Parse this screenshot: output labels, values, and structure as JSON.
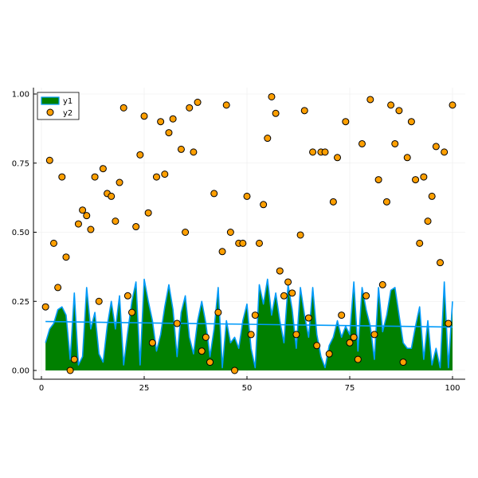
{
  "chart_data": {
    "type": "area",
    "title": "",
    "xlabel": "",
    "ylabel": "",
    "xlim": [
      0,
      100
    ],
    "ylim": [
      0,
      1
    ],
    "xticks": [
      0,
      25,
      50,
      75,
      100
    ],
    "yticks": [
      0.0,
      0.25,
      0.5,
      0.75,
      1.0
    ],
    "xtick_labels": [
      "0",
      "25",
      "50",
      "75",
      "100"
    ],
    "ytick_labels": [
      "0.00",
      "0.25",
      "0.50",
      "0.75",
      "1.00"
    ],
    "grid": true,
    "legend_position": "top-left",
    "colors": {
      "area_fill": "#008000",
      "area_line": "#009AFA",
      "scatter_fill": "#FF9F00",
      "scatter_edge": "#000000",
      "trend_line": "#009AFA",
      "axis": "#000000",
      "grid": "#EBEBEB"
    },
    "series": [
      {
        "name": "y1",
        "kind": "area",
        "x": [
          1,
          2,
          3,
          4,
          5,
          6,
          7,
          8,
          9,
          10,
          11,
          12,
          13,
          14,
          15,
          16,
          17,
          18,
          19,
          20,
          21,
          22,
          23,
          24,
          25,
          26,
          27,
          28,
          29,
          30,
          31,
          32,
          33,
          34,
          35,
          36,
          37,
          38,
          39,
          40,
          41,
          42,
          43,
          44,
          45,
          46,
          47,
          48,
          49,
          50,
          51,
          52,
          53,
          54,
          55,
          56,
          57,
          58,
          59,
          60,
          61,
          62,
          63,
          64,
          65,
          66,
          67,
          68,
          69,
          70,
          71,
          72,
          73,
          74,
          75,
          76,
          77,
          78,
          79,
          80,
          81,
          82,
          83,
          84,
          85,
          86,
          87,
          88,
          89,
          90,
          91,
          92,
          93,
          94,
          95,
          96,
          97,
          98,
          99,
          100
        ],
        "values": [
          0.1,
          0.15,
          0.17,
          0.22,
          0.23,
          0.2,
          0.04,
          0.28,
          0.02,
          0.05,
          0.3,
          0.15,
          0.21,
          0.06,
          0.03,
          0.16,
          0.25,
          0.15,
          0.27,
          0.02,
          0.14,
          0.25,
          0.32,
          0.02,
          0.33,
          0.25,
          0.18,
          0.07,
          0.13,
          0.23,
          0.31,
          0.22,
          0.05,
          0.21,
          0.27,
          0.12,
          0.06,
          0.18,
          0.25,
          0.17,
          0.05,
          0.15,
          0.3,
          0.01,
          0.18,
          0.1,
          0.12,
          0.08,
          0.18,
          0.24,
          0.08,
          0.01,
          0.31,
          0.24,
          0.33,
          0.2,
          0.28,
          0.18,
          0.1,
          0.31,
          0.22,
          0.08,
          0.3,
          0.2,
          0.12,
          0.3,
          0.13,
          0.05,
          0.01,
          0.09,
          0.12,
          0.18,
          0.12,
          0.16,
          0.13,
          0.32,
          0.07,
          0.3,
          0.22,
          0.16,
          0.04,
          0.3,
          0.14,
          0.2,
          0.29,
          0.3,
          0.2,
          0.1,
          0.08,
          0.08,
          0.16,
          0.23,
          0.04,
          0.18,
          0.02,
          0.08,
          0.01,
          0.32,
          0.01,
          0.25
        ]
      },
      {
        "name": "y2",
        "kind": "scatter",
        "x": [
          1,
          2,
          3,
          4,
          5,
          6,
          7,
          8,
          9,
          10,
          11,
          12,
          13,
          14,
          15,
          16,
          17,
          18,
          19,
          20,
          21,
          22,
          23,
          24,
          25,
          26,
          27,
          28,
          29,
          30,
          31,
          32,
          33,
          34,
          35,
          36,
          37,
          38,
          39,
          40,
          41,
          42,
          43,
          44,
          45,
          46,
          47,
          48,
          49,
          50,
          51,
          52,
          53,
          54,
          55,
          56,
          57,
          58,
          59,
          60,
          61,
          62,
          63,
          64,
          65,
          66,
          67,
          68,
          69,
          70,
          71,
          72,
          73,
          74,
          75,
          76,
          77,
          78,
          79,
          80,
          81,
          82,
          83,
          84,
          85,
          86,
          87,
          88,
          89,
          90,
          91,
          92,
          93,
          94,
          95,
          96,
          97,
          98,
          99,
          100
        ],
        "values": [
          0.23,
          0.76,
          0.46,
          0.3,
          0.7,
          0.41,
          0.0,
          0.04,
          0.53,
          0.58,
          0.56,
          0.51,
          0.7,
          0.25,
          0.73,
          0.64,
          0.63,
          0.54,
          0.68,
          0.95,
          0.27,
          0.21,
          0.52,
          0.78,
          0.92,
          0.57,
          0.1,
          0.7,
          0.9,
          0.71,
          0.86,
          0.91,
          0.17,
          0.8,
          0.5,
          0.95,
          0.79,
          0.97,
          0.07,
          0.12,
          0.03,
          0.64,
          0.21,
          0.43,
          0.96,
          0.5,
          0.0,
          0.46,
          0.46,
          0.63,
          0.13,
          0.2,
          0.46,
          0.6,
          0.84,
          0.99,
          0.93,
          0.36,
          0.27,
          0.32,
          0.28,
          0.13,
          0.49,
          0.94,
          0.19,
          0.79,
          0.09,
          0.79,
          0.79,
          0.06,
          0.61,
          0.77,
          0.2,
          0.9,
          0.1,
          0.12,
          0.04,
          0.82,
          0.27,
          0.98,
          0.13,
          0.69,
          0.31,
          0.61,
          0.96,
          0.82,
          0.94,
          0.03,
          0.77,
          0.9,
          0.69,
          0.46,
          0.7,
          0.54,
          0.63,
          0.81,
          0.39,
          0.79,
          0.17,
          0.96
        ]
      },
      {
        "kind": "trend_line",
        "x": [
          1,
          100
        ],
        "values": [
          0.177,
          0.157
        ]
      }
    ]
  }
}
